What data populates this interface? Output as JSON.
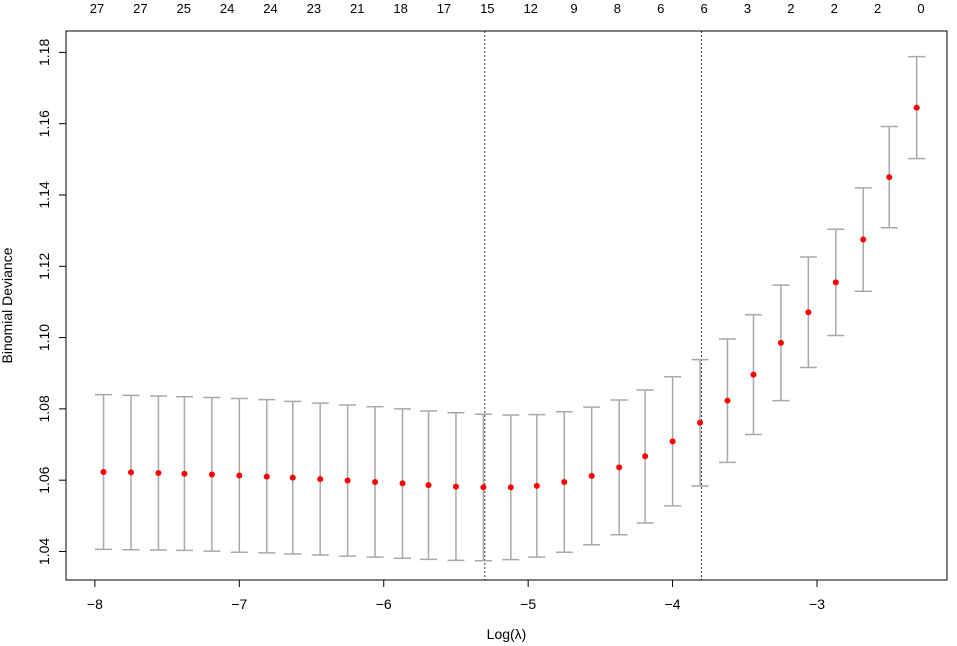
{
  "chart_data": {
    "type": "scatter",
    "xlabel": "Log(λ)",
    "ylabel": "Binomial Deviance",
    "xlim": [
      -8.2,
      -2.1
    ],
    "ylim": [
      1.032,
      1.186
    ],
    "xticks": [
      -8,
      -7,
      -6,
      -5,
      -4,
      -3
    ],
    "xtick_labels": [
      "−8",
      "−7",
      "−6",
      "−5",
      "−4",
      "−3"
    ],
    "yticks": [
      1.04,
      1.06,
      1.08,
      1.1,
      1.12,
      1.14,
      1.16,
      1.18
    ],
    "ytick_labels": [
      "1.04",
      "1.06",
      "1.08",
      "1.10",
      "1.12",
      "1.14",
      "1.16",
      "1.18"
    ],
    "top_axis_labels": [
      "27",
      "27",
      "25",
      "24",
      "24",
      "23",
      "21",
      "18",
      "17",
      "15",
      "12",
      "9",
      "8",
      "6",
      "6",
      "3",
      "2",
      "2",
      "2",
      "0"
    ],
    "vlines": [
      -5.3,
      -3.8
    ],
    "point_color": "#ff0000",
    "errorbar_color": "#a9a9a9",
    "points": [
      {
        "x": -7.94,
        "y": 1.0623,
        "lo": 1.0406,
        "hi": 1.084
      },
      {
        "x": -7.75,
        "y": 1.0622,
        "lo": 1.0405,
        "hi": 1.0838
      },
      {
        "x": -7.56,
        "y": 1.062,
        "lo": 1.0404,
        "hi": 1.0836
      },
      {
        "x": -7.38,
        "y": 1.0618,
        "lo": 1.0403,
        "hi": 1.0834
      },
      {
        "x": -7.19,
        "y": 1.0616,
        "lo": 1.0401,
        "hi": 1.0832
      },
      {
        "x": -7.0,
        "y": 1.0613,
        "lo": 1.0398,
        "hi": 1.0829
      },
      {
        "x": -6.81,
        "y": 1.061,
        "lo": 1.0396,
        "hi": 1.0826
      },
      {
        "x": -6.63,
        "y": 1.0607,
        "lo": 1.0393,
        "hi": 1.0821
      },
      {
        "x": -6.44,
        "y": 1.0603,
        "lo": 1.039,
        "hi": 1.0816
      },
      {
        "x": -6.25,
        "y": 1.0599,
        "lo": 1.0387,
        "hi": 1.0811
      },
      {
        "x": -6.06,
        "y": 1.0595,
        "lo": 1.0384,
        "hi": 1.0806
      },
      {
        "x": -5.87,
        "y": 1.0591,
        "lo": 1.0381,
        "hi": 1.08
      },
      {
        "x": -5.69,
        "y": 1.0586,
        "lo": 1.0378,
        "hi": 1.0794
      },
      {
        "x": -5.5,
        "y": 1.0582,
        "lo": 1.0375,
        "hi": 1.0789
      },
      {
        "x": -5.31,
        "y": 1.058,
        "lo": 1.0374,
        "hi": 1.0785
      },
      {
        "x": -5.12,
        "y": 1.058,
        "lo": 1.0377,
        "hi": 1.0783
      },
      {
        "x": -4.94,
        "y": 1.0584,
        "lo": 1.0384,
        "hi": 1.0784
      },
      {
        "x": -4.75,
        "y": 1.0595,
        "lo": 1.0398,
        "hi": 1.0792
      },
      {
        "x": -4.56,
        "y": 1.0612,
        "lo": 1.0419,
        "hi": 1.0805
      },
      {
        "x": -4.37,
        "y": 1.0636,
        "lo": 1.0447,
        "hi": 1.0825
      },
      {
        "x": -4.19,
        "y": 1.0667,
        "lo": 1.048,
        "hi": 1.0853
      },
      {
        "x": -4.0,
        "y": 1.0709,
        "lo": 1.0528,
        "hi": 1.089
      },
      {
        "x": -3.81,
        "y": 1.0761,
        "lo": 1.0584,
        "hi": 1.0938
      },
      {
        "x": -3.62,
        "y": 1.0823,
        "lo": 1.065,
        "hi": 1.0996
      },
      {
        "x": -3.44,
        "y": 1.0896,
        "lo": 1.0728,
        "hi": 1.1064
      },
      {
        "x": -3.25,
        "y": 1.0985,
        "lo": 1.0823,
        "hi": 1.1147
      },
      {
        "x": -3.06,
        "y": 1.1071,
        "lo": 1.0916,
        "hi": 1.1226
      },
      {
        "x": -2.87,
        "y": 1.1155,
        "lo": 1.1006,
        "hi": 1.1304
      },
      {
        "x": -2.68,
        "y": 1.1275,
        "lo": 1.113,
        "hi": 1.142
      },
      {
        "x": -2.5,
        "y": 1.145,
        "lo": 1.1308,
        "hi": 1.1592
      },
      {
        "x": -2.31,
        "y": 1.1645,
        "lo": 1.1502,
        "hi": 1.1788
      }
    ]
  }
}
